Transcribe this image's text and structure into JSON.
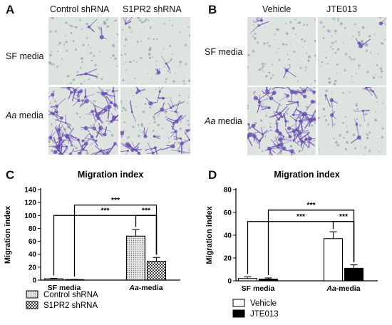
{
  "panels": {
    "A": {
      "letter": "A",
      "columns": [
        "Control shRNA",
        "S1PR2 shRNA"
      ],
      "rows": [
        {
          "text": "SF media",
          "italic_part": ""
        },
        {
          "text": " media",
          "italic_part": "Aa"
        }
      ]
    },
    "B": {
      "letter": "B",
      "columns": [
        "Vehicle",
        "JTE013"
      ],
      "rows": [
        {
          "text": "SF media",
          "italic_part": ""
        },
        {
          "text": " media",
          "italic_part": "Aa"
        }
      ]
    },
    "C": {
      "letter": "C"
    },
    "D": {
      "letter": "D"
    }
  },
  "colors": {
    "micro_bg": "#dde3df",
    "cell_dot": "#9aa4b4",
    "stain": "#6a4fb3",
    "bar_control": "#d6d6d6",
    "bar_s1pr2": "#ffffff",
    "bar_vehicle": "#ffffff",
    "bar_jte": "#000000"
  },
  "chart_data": [
    {
      "panel": "C",
      "type": "bar",
      "title": "Migration index",
      "ylabel": "Migration index",
      "ylim": [
        0,
        140
      ],
      "yticks": [
        0,
        20,
        40,
        60,
        80,
        100,
        120,
        140
      ],
      "categories": [
        {
          "text": "SF media",
          "italic_part": ""
        },
        {
          "text": "-media",
          "italic_part": "Aa"
        }
      ],
      "series": [
        {
          "name": "Control shRNA",
          "values": [
            2,
            68
          ],
          "errors": [
            0.8,
            10
          ],
          "pattern": "dots"
        },
        {
          "name": "S1PR2 shRNA",
          "values": [
            0.8,
            29
          ],
          "errors": [
            0.3,
            6
          ],
          "pattern": "checker"
        }
      ],
      "significance": [
        {
          "label": "***",
          "y": 100,
          "from": [
            0,
            0
          ],
          "to": [
            1,
            1
          ]
        },
        {
          "label": "***",
          "y": 116,
          "from": [
            0,
            1
          ],
          "to": [
            1,
            1
          ]
        },
        {
          "label": "***",
          "y": 100,
          "from": [
            1,
            0
          ],
          "to": [
            1,
            1
          ]
        }
      ],
      "legend_position": "bottom-left"
    },
    {
      "panel": "D",
      "type": "bar",
      "title": "Migration index",
      "ylabel": "Migration index",
      "ylim": [
        0,
        80
      ],
      "yticks": [
        0,
        20,
        40,
        60,
        80
      ],
      "categories": [
        {
          "text": "SF media",
          "italic_part": ""
        },
        {
          "text": "-media",
          "italic_part": "Aa"
        }
      ],
      "series": [
        {
          "name": "Vehicle",
          "values": [
            2,
            37
          ],
          "errors": [
            1.5,
            6
          ],
          "pattern": "white"
        },
        {
          "name": "JTE013",
          "values": [
            1.5,
            11
          ],
          "errors": [
            1,
            3
          ],
          "pattern": "black"
        }
      ],
      "significance": [
        {
          "label": "***",
          "y": 52,
          "from": [
            0,
            0
          ],
          "to": [
            1,
            1
          ]
        },
        {
          "label": "***",
          "y": 62,
          "from": [
            0,
            1
          ],
          "to": [
            1,
            1
          ]
        },
        {
          "label": "***",
          "y": 52,
          "from": [
            1,
            0
          ],
          "to": [
            1,
            1
          ]
        }
      ],
      "legend_position": "bottom-left"
    }
  ]
}
